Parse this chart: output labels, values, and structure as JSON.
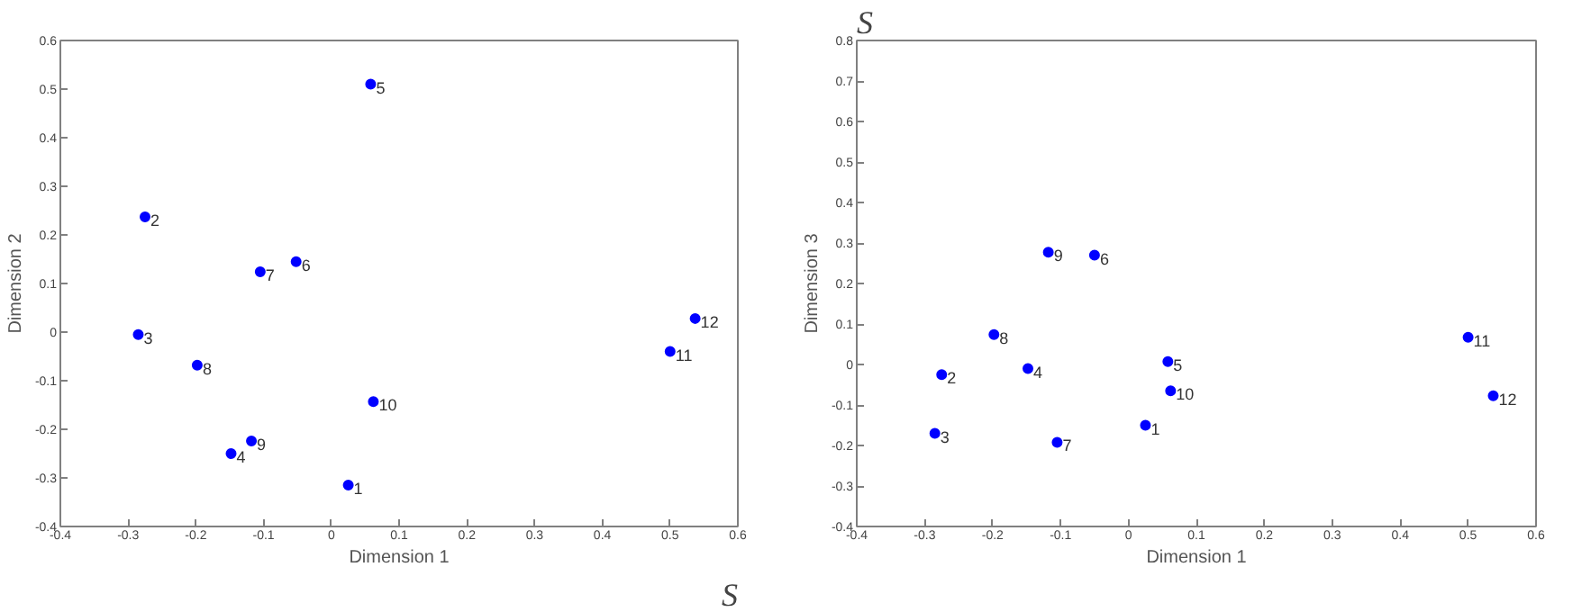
{
  "chart_data": [
    {
      "type": "scatter",
      "xlabel": "Dimension 1",
      "ylabel": "Dimension 2",
      "xlim": [
        -0.4,
        0.6
      ],
      "ylim": [
        -0.4,
        0.6
      ],
      "xticks": [
        -0.4,
        -0.3,
        -0.2,
        -0.1,
        0,
        0.1,
        0.2,
        0.3,
        0.4,
        0.5,
        0.6
      ],
      "yticks": [
        -0.4,
        -0.3,
        -0.2,
        -0.1,
        0,
        0.1,
        0.2,
        0.3,
        0.4,
        0.5,
        0.6
      ],
      "grid": false,
      "marker": "circle",
      "series": [
        {
          "color": "#0000ff",
          "x": [
            0.025,
            -0.275,
            -0.285,
            -0.148,
            0.058,
            -0.052,
            -0.105,
            -0.198,
            -0.118,
            0.062,
            0.5,
            0.537
          ],
          "values": [
            -0.315,
            0.237,
            -0.005,
            -0.25,
            0.51,
            0.145,
            0.124,
            -0.068,
            -0.224,
            -0.143,
            -0.04,
            0.028
          ]
        }
      ],
      "annotations": [
        {
          "text": "1",
          "x": 0.025,
          "y": -0.315
        },
        {
          "text": "2",
          "x": -0.275,
          "y": 0.237
        },
        {
          "text": "3",
          "x": -0.285,
          "y": -0.005
        },
        {
          "text": "4",
          "x": -0.148,
          "y": -0.25
        },
        {
          "text": "5",
          "x": 0.058,
          "y": 0.51
        },
        {
          "text": "6",
          "x": -0.052,
          "y": 0.145
        },
        {
          "text": "7",
          "x": -0.105,
          "y": 0.124
        },
        {
          "text": "8",
          "x": -0.198,
          "y": -0.068
        },
        {
          "text": "9",
          "x": -0.118,
          "y": -0.224
        },
        {
          "text": "10",
          "x": 0.062,
          "y": -0.143
        },
        {
          "text": "11",
          "x": 0.5,
          "y": -0.04
        },
        {
          "text": "12",
          "x": 0.537,
          "y": 0.028
        },
        "S"
      ]
    },
    {
      "type": "scatter",
      "xlabel": "Dimension 1",
      "ylabel": "Dimension 3",
      "xlim": [
        -0.4,
        0.6
      ],
      "ylim": [
        -0.4,
        0.8
      ],
      "xticks": [
        -0.4,
        -0.3,
        -0.2,
        -0.1,
        0,
        0.1,
        0.2,
        0.3,
        0.4,
        0.5,
        0.6
      ],
      "yticks": [
        -0.4,
        -0.3,
        -0.2,
        -0.1,
        0,
        0.1,
        0.2,
        0.3,
        0.4,
        0.5,
        0.6,
        0.7,
        0.8
      ],
      "grid": false,
      "marker": "circle",
      "series": [
        {
          "color": "#0000ff",
          "x": [
            0.025,
            -0.275,
            -0.285,
            -0.148,
            0.058,
            -0.05,
            -0.105,
            -0.198,
            -0.118,
            0.062,
            0.5,
            0.537
          ],
          "values": [
            -0.15,
            -0.025,
            -0.17,
            -0.01,
            0.007,
            0.27,
            -0.192,
            0.074,
            0.277,
            -0.065,
            0.067,
            -0.077
          ]
        }
      ],
      "annotations": [
        {
          "text": "1",
          "x": 0.025,
          "y": -0.15
        },
        {
          "text": "2",
          "x": -0.275,
          "y": -0.025
        },
        {
          "text": "3",
          "x": -0.285,
          "y": -0.17
        },
        {
          "text": "4",
          "x": -0.148,
          "y": -0.01
        },
        {
          "text": "5",
          "x": 0.058,
          "y": 0.007
        },
        {
          "text": "6",
          "x": -0.05,
          "y": 0.27
        },
        {
          "text": "7",
          "x": -0.105,
          "y": -0.192
        },
        {
          "text": "8",
          "x": -0.198,
          "y": 0.074
        },
        {
          "text": "9",
          "x": -0.118,
          "y": 0.277
        },
        {
          "text": "10",
          "x": 0.062,
          "y": -0.065
        },
        {
          "text": "11",
          "x": 0.5,
          "y": 0.067
        },
        {
          "text": "12",
          "x": 0.537,
          "y": -0.077
        },
        "S"
      ]
    }
  ]
}
